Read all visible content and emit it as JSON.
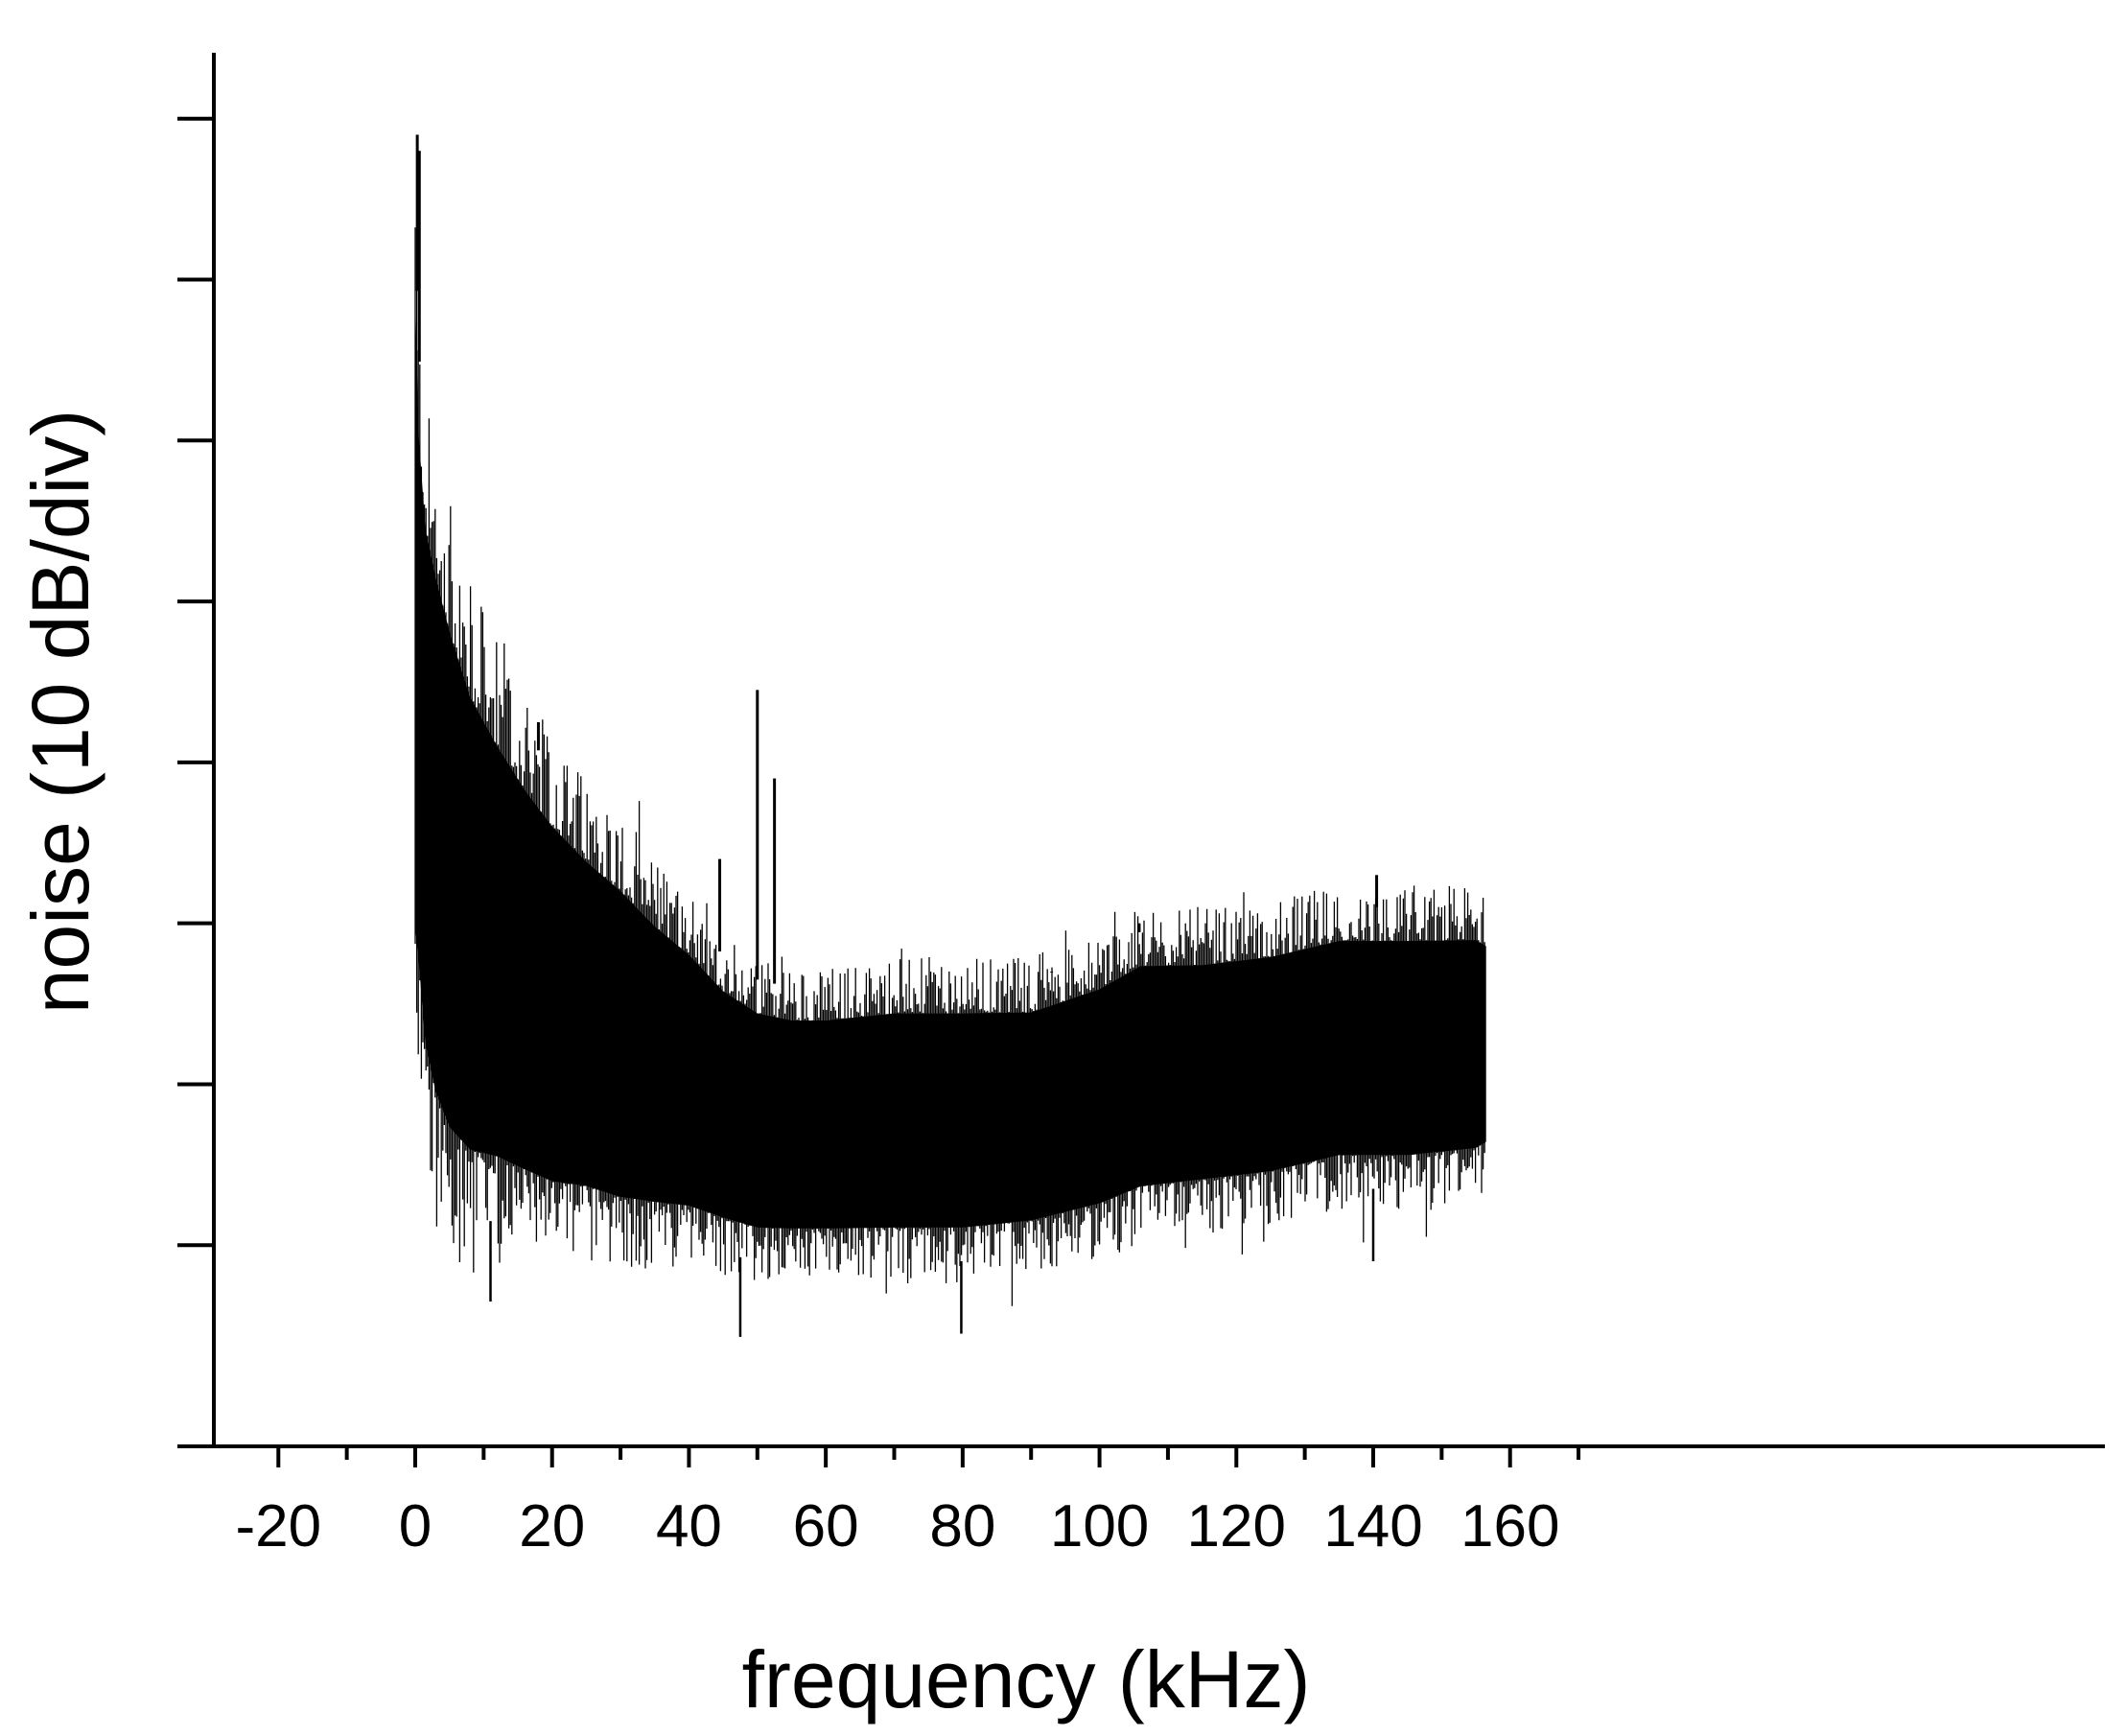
{
  "chart_data": {
    "type": "area",
    "title": "",
    "xlabel": "frequency  (kHz)",
    "ylabel": "noise (10 dB/div)",
    "xlim": [
      -20,
      175
    ],
    "ylim": [
      0,
      8.6
    ],
    "grid": false,
    "legend": "none",
    "x_ticks": [
      -20,
      0,
      20,
      40,
      60,
      80,
      100,
      120,
      140,
      160
    ],
    "x_tick_labels": [
      "-20",
      "0",
      "20",
      "40",
      "60",
      "80",
      "100",
      "120",
      "140",
      "160"
    ],
    "x_minor_step": 10,
    "y_ticks": [
      1.25,
      2.25,
      3.25,
      4.25,
      5.25,
      6.25,
      7.25,
      8.25
    ],
    "y_tick_labels": [
      "",
      "",
      "",
      "",
      "",
      "",
      "",
      ""
    ],
    "series": [
      {
        "color": "#000000",
        "description_points": [
          {
            "x": 0.0,
            "upper": 7.75,
            "lower": 2.6
          },
          {
            "x": 0.5,
            "upper": 6.8,
            "lower": 2.5
          },
          {
            "x": 1.5,
            "upper": 6.2,
            "lower": 2.0
          },
          {
            "x": 3,
            "upper": 5.9,
            "lower": 1.7
          },
          {
            "x": 5,
            "upper": 5.55,
            "lower": 1.5
          },
          {
            "x": 8,
            "upper": 5.1,
            "lower": 1.4
          },
          {
            "x": 12,
            "upper": 4.75,
            "lower": 1.4
          },
          {
            "x": 16,
            "upper": 4.45,
            "lower": 1.35
          },
          {
            "x": 20,
            "upper": 4.2,
            "lower": 1.3
          },
          {
            "x": 25,
            "upper": 3.95,
            "lower": 1.3
          },
          {
            "x": 30,
            "upper": 3.75,
            "lower": 1.25
          },
          {
            "x": 35,
            "upper": 3.5,
            "lower": 1.25
          },
          {
            "x": 40,
            "upper": 3.3,
            "lower": 1.25
          },
          {
            "x": 45,
            "upper": 3.05,
            "lower": 1.2
          },
          {
            "x": 50,
            "upper": 2.9,
            "lower": 1.15
          },
          {
            "x": 55,
            "upper": 2.85,
            "lower": 1.15
          },
          {
            "x": 60,
            "upper": 2.85,
            "lower": 1.15
          },
          {
            "x": 70,
            "upper": 2.9,
            "lower": 1.15
          },
          {
            "x": 80,
            "upper": 2.9,
            "lower": 1.15
          },
          {
            "x": 90,
            "upper": 2.9,
            "lower": 1.2
          },
          {
            "x": 100,
            "upper": 3.05,
            "lower": 1.3
          },
          {
            "x": 106,
            "upper": 3.2,
            "lower": 1.4
          },
          {
            "x": 115,
            "upper": 3.2,
            "lower": 1.45
          },
          {
            "x": 125,
            "upper": 3.25,
            "lower": 1.5
          },
          {
            "x": 135,
            "upper": 3.35,
            "lower": 1.6
          },
          {
            "x": 145,
            "upper": 3.35,
            "lower": 1.6
          },
          {
            "x": 155,
            "upper": 3.35,
            "lower": 1.65
          },
          {
            "x": 156.5,
            "upper": 3.3,
            "lower": 1.7
          }
        ],
        "spikes": [
          {
            "x": 0.3,
            "y": 8.15
          },
          {
            "x": 0.6,
            "y": 8.05
          },
          {
            "x": 18,
            "y": 4.5
          },
          {
            "x": 44.5,
            "y": 3.65
          },
          {
            "x": 50,
            "y": 4.7
          },
          {
            "x": 52.5,
            "y": 4.15
          },
          {
            "x": 93,
            "y": 2.95
          },
          {
            "x": 105.8,
            "y": 3.25
          },
          {
            "x": 140.5,
            "y": 3.55
          }
        ],
        "dips": [
          {
            "x": 11,
            "y": 0.9
          },
          {
            "x": 47.5,
            "y": 0.68
          },
          {
            "x": 79.8,
            "y": 0.7
          },
          {
            "x": 140,
            "y": 1.15
          }
        ]
      }
    ]
  }
}
